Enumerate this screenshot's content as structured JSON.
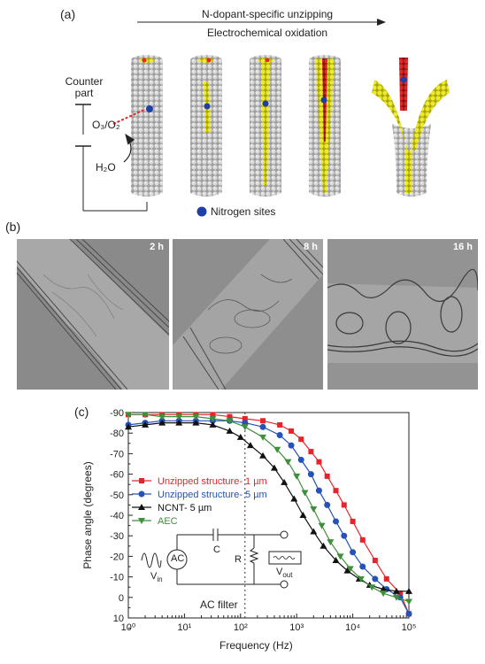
{
  "panel_a": {
    "label": "(a)",
    "arrow_top": "N-dopant-specific unzipping",
    "arrow_bottom": "Electrochemical oxidation",
    "counter_part_line1": "Counter",
    "counter_part_line2": "part",
    "oxidant": "O₃/O₂",
    "water": "H₂O",
    "legend": "Nitrogen sites",
    "colors": {
      "tube": "#bdbdbd",
      "yellow": "#e6e21a",
      "red": "#d42020",
      "nitrogen": "#1f3ea8"
    }
  },
  "panel_b": {
    "label": "(b)",
    "images": [
      {
        "time": "2 h"
      },
      {
        "time": "8 h"
      },
      {
        "time": "16 h"
      }
    ]
  },
  "panel_c": {
    "label": "(c)",
    "inset": {
      "c_label": "C",
      "r_label": "R",
      "ac_label": "AC",
      "vin": "V",
      "vin_sub": "in",
      "vout": "V",
      "vout_sub": "out"
    },
    "filter_label": "AC filter"
  },
  "chart_data": {
    "type": "line",
    "xlabel": "Frequency (Hz)",
    "ylabel": "Phase angle (degrees)",
    "xscale": "log",
    "xlim": [
      1,
      100000
    ],
    "ylim": [
      -90,
      10
    ],
    "y_inverted_top_negative": true,
    "xticks": [
      "10⁰",
      "10¹",
      "10²",
      "10³",
      "10⁴",
      "10⁵"
    ],
    "yticks": [
      "-90",
      "-80",
      "-70",
      "-60",
      "-50",
      "-40",
      "-30",
      "-20",
      "-10",
      "0",
      "10"
    ],
    "grid": false,
    "legend_position": "middle-left",
    "vline_x": 120,
    "series": [
      {
        "name": "Unzipped structure- 1 µm",
        "color": "#e8242a",
        "marker": "square",
        "x": [
          1,
          2,
          4,
          8,
          16,
          32,
          64,
          120,
          250,
          500,
          800,
          1200,
          1800,
          2500,
          3500,
          5000,
          7000,
          10000,
          15000,
          25000,
          40000,
          70000,
          100000
        ],
        "y": [
          -89,
          -89,
          -89,
          -89,
          -89,
          -89,
          -88,
          -87,
          -86,
          -84,
          -81,
          -77,
          -71,
          -66,
          -59,
          -52,
          -45,
          -37,
          -28,
          -18,
          -9,
          -2,
          8
        ]
      },
      {
        "name": "Unzipped structure- 5 µm",
        "color": "#2452b8",
        "marker": "circle",
        "x": [
          1,
          2,
          4,
          8,
          16,
          32,
          64,
          120,
          250,
          500,
          800,
          1200,
          1800,
          2500,
          3500,
          5000,
          7000,
          10000,
          15000,
          25000,
          40000,
          70000,
          100000
        ],
        "y": [
          -84,
          -85,
          -86,
          -86,
          -86,
          -86,
          -86,
          -85,
          -83,
          -79,
          -74,
          -67,
          -60,
          -52,
          -45,
          -37,
          -30,
          -22,
          -15,
          -9,
          -4,
          0,
          8
        ]
      },
      {
        "name": "NCNT- 5 µm",
        "color": "#111111",
        "marker": "triangle-up",
        "x": [
          1,
          2,
          4,
          8,
          16,
          32,
          64,
          100,
          150,
          250,
          400,
          600,
          900,
          1300,
          2000,
          3000,
          5000,
          8000,
          13000,
          20000,
          35000,
          60000,
          100000
        ],
        "y": [
          -83,
          -84,
          -85,
          -85,
          -85,
          -84,
          -81,
          -78,
          -74,
          -69,
          -63,
          -56,
          -48,
          -40,
          -32,
          -25,
          -18,
          -13,
          -9,
          -6,
          -4,
          -3,
          -3
        ]
      },
      {
        "name": "AEC",
        "color": "#3f8f3b",
        "marker": "triangle-down",
        "x": [
          1,
          2,
          4,
          8,
          16,
          32,
          64,
          120,
          250,
          450,
          700,
          1000,
          1400,
          2000,
          2800,
          4000,
          6000,
          9000,
          14000,
          22000,
          35000,
          60000,
          100000
        ],
        "y": [
          -89,
          -89,
          -88,
          -88,
          -88,
          -87,
          -86,
          -83,
          -78,
          -72,
          -66,
          -59,
          -51,
          -43,
          -35,
          -27,
          -20,
          -14,
          -9,
          -5,
          -2,
          0,
          2
        ]
      }
    ]
  }
}
